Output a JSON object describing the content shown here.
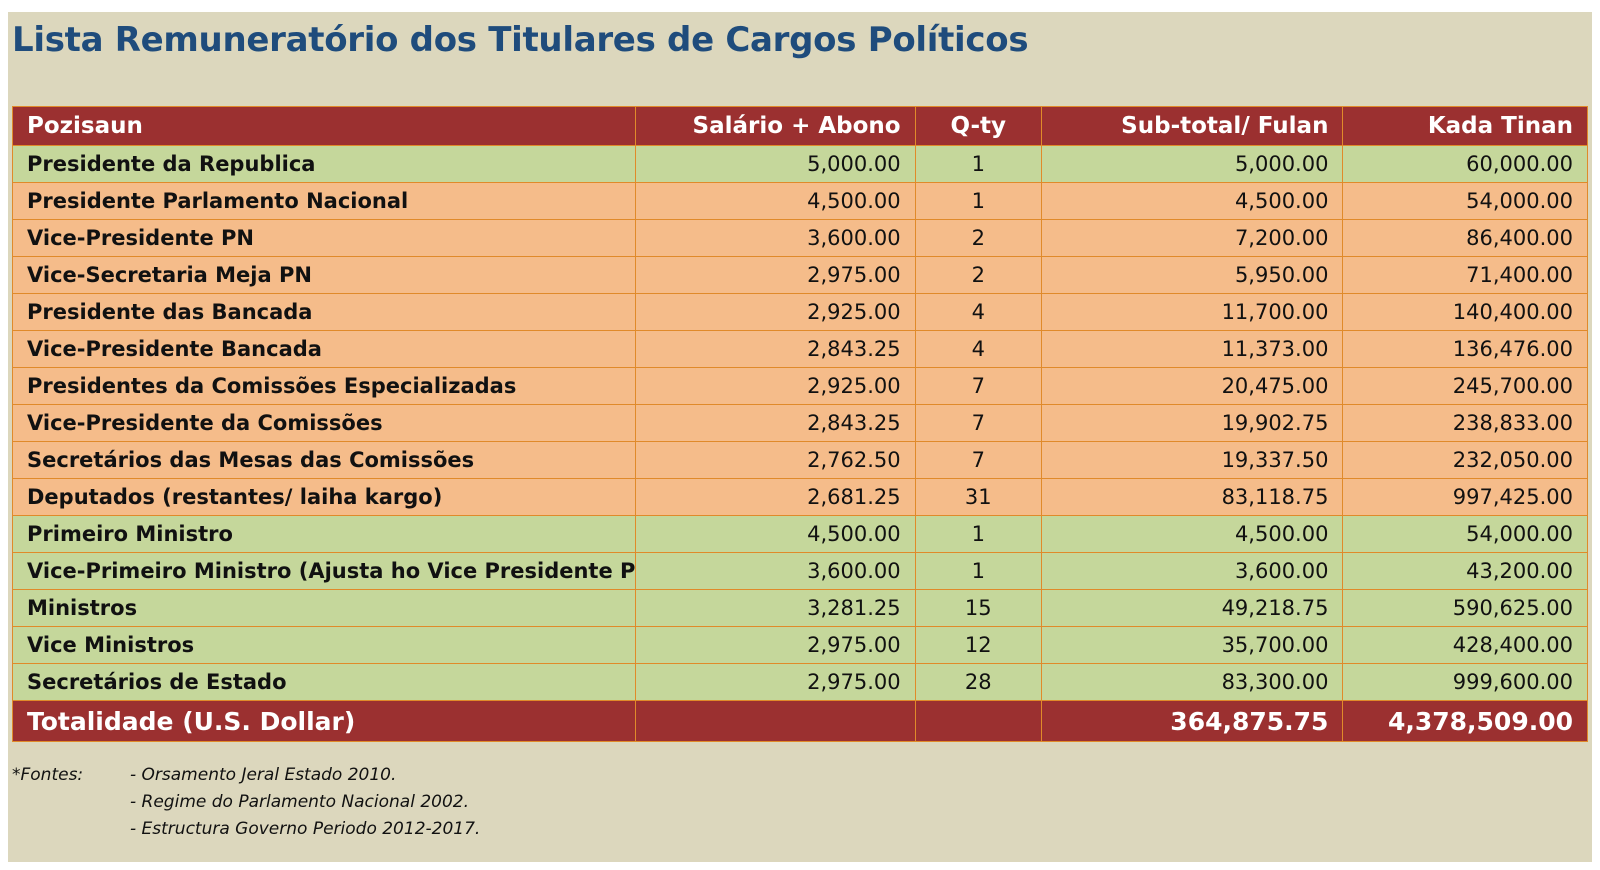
{
  "title": "Lista Remuneratório dos Titulares de Cargos Políticos",
  "table": {
    "headers": [
      "Pozisaun",
      "Salário + Abono",
      "Q-ty",
      "Sub-total/ Fulan",
      "Kada Tinan"
    ],
    "rows": [
      {
        "pozisaun": "Presidente da Republica",
        "salario": "5,000.00",
        "qty": "1",
        "subtotal": "5,000.00",
        "kada_tinan": "60,000.00",
        "color": "green"
      },
      {
        "pozisaun": "Presidente Parlamento Nacional",
        "salario": "4,500.00",
        "qty": "1",
        "subtotal": "4,500.00",
        "kada_tinan": "54,000.00",
        "color": "orange"
      },
      {
        "pozisaun": "Vice-Presidente PN",
        "salario": "3,600.00",
        "qty": "2",
        "subtotal": "7,200.00",
        "kada_tinan": "86,400.00",
        "color": "orange"
      },
      {
        "pozisaun": "Vice-Secretaria Meja PN",
        "salario": "2,975.00",
        "qty": "2",
        "subtotal": "5,950.00",
        "kada_tinan": "71,400.00",
        "color": "orange"
      },
      {
        "pozisaun": "Presidente das Bancada",
        "salario": "2,925.00",
        "qty": "4",
        "subtotal": "11,700.00",
        "kada_tinan": "140,400.00",
        "color": "orange"
      },
      {
        "pozisaun": "Vice-Presidente Bancada",
        "salario": "2,843.25",
        "qty": "4",
        "subtotal": "11,373.00",
        "kada_tinan": "136,476.00",
        "color": "orange"
      },
      {
        "pozisaun": "Presidentes da Comissões Especializadas",
        "salario": "2,925.00",
        "qty": "7",
        "subtotal": "20,475.00",
        "kada_tinan": "245,700.00",
        "color": "orange"
      },
      {
        "pozisaun": "Vice-Presidente da Comissões",
        "salario": "2,843.25",
        "qty": "7",
        "subtotal": "19,902.75",
        "kada_tinan": "238,833.00",
        "color": "orange"
      },
      {
        "pozisaun": "Secretários das Mesas das Comissões",
        "salario": "2,762.50",
        "qty": "7",
        "subtotal": "19,337.50",
        "kada_tinan": "232,050.00",
        "color": "orange"
      },
      {
        "pozisaun": "Deputados (restantes/ laiha kargo)",
        "salario": "2,681.25",
        "qty": "31",
        "subtotal": "83,118.75",
        "kada_tinan": "997,425.00",
        "color": "orange"
      },
      {
        "pozisaun": "Primeiro Ministro",
        "salario": "4,500.00",
        "qty": "1",
        "subtotal": "4,500.00",
        "kada_tinan": "54,000.00",
        "color": "green"
      },
      {
        "pozisaun": "Vice-Primeiro Ministro (Ajusta ho Vice Presidente PN)",
        "salario": "3,600.00",
        "qty": "1",
        "subtotal": "3,600.00",
        "kada_tinan": "43,200.00",
        "color": "green"
      },
      {
        "pozisaun": "Ministros",
        "salario": "3,281.25",
        "qty": "15",
        "subtotal": "49,218.75",
        "kada_tinan": "590,625.00",
        "color": "green"
      },
      {
        "pozisaun": "Vice Ministros",
        "salario": "2,975.00",
        "qty": "12",
        "subtotal": "35,700.00",
        "kada_tinan": "428,400.00",
        "color": "green"
      },
      {
        "pozisaun": "Secretários de Estado",
        "salario": "2,975.00",
        "qty": "28",
        "subtotal": "83,300.00",
        "kada_tinan": "999,600.00",
        "color": "green"
      }
    ],
    "total": {
      "label": "Totalidade (U.S. Dollar)",
      "subtotal": "364,875.75",
      "kada_tinan": "4,378,509.00"
    }
  },
  "footnote": {
    "label": "*Fontes:",
    "items": [
      "- Orsamento Jeral Estado 2010.",
      "- Regime do Parlamento Nacional 2002.",
      "- Estructura Governo Periodo 2012-2017."
    ]
  },
  "colors": {
    "header_bg": "#9b3030",
    "row_green": "#c5d79b",
    "row_orange": "#f5bc8a",
    "border": "#e08a2a",
    "title": "#1f4c7c",
    "panel_bg": "#dcd7bd"
  }
}
